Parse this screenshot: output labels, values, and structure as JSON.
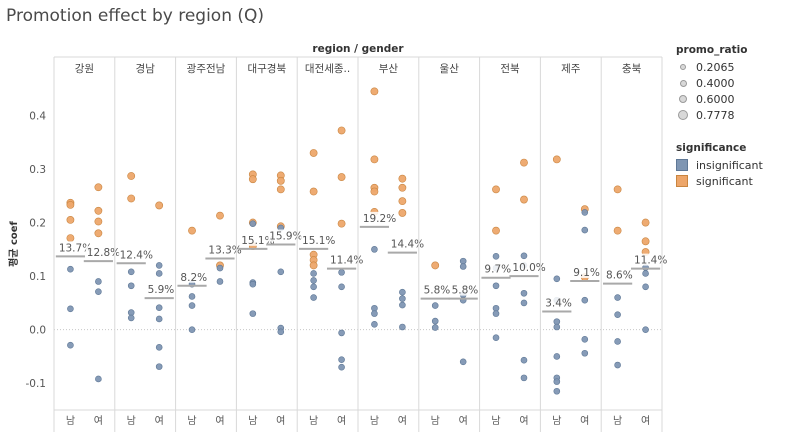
{
  "title": "Promotion effect by region (Q)",
  "colors": {
    "insignificant": "#7f96b3",
    "significant": "#eda66a",
    "insignificant_stroke": "#5f7896",
    "significant_stroke": "#c98540",
    "avg_line": "#a9a9a9",
    "grid": "#d9d9d9"
  },
  "legend": {
    "size_title": "promo_ratio",
    "size_items": [
      "0.2065",
      "0.4000",
      "0.6000",
      "0.7778"
    ],
    "color_title": "significance",
    "color_items": [
      {
        "label": "insignificant",
        "key": "insignificant"
      },
      {
        "label": "significant",
        "key": "significant"
      }
    ]
  },
  "chart_data": {
    "type": "scatter",
    "title": "Promotion effect by region (Q)",
    "column_header": "region / gender",
    "ylabel": "평균 coef",
    "ylim": [
      -0.15,
      0.47
    ],
    "yticks": [
      -0.1,
      0.0,
      0.1,
      0.2,
      0.3,
      0.4
    ],
    "ytick_labels": [
      "-0.1",
      "0.0",
      "0.1",
      "0.2",
      "0.3",
      "0.4"
    ],
    "gender_labels": [
      "남",
      "여"
    ],
    "regions": [
      {
        "name": "강원",
        "groups": [
          {
            "gender": "남",
            "mean": 0.137,
            "label": "13.7%",
            "points": [
              {
                "y": 0.237,
                "sig": true
              },
              {
                "y": 0.233,
                "sig": true
              },
              {
                "y": 0.205,
                "sig": true
              },
              {
                "y": 0.171,
                "sig": true
              },
              {
                "y": 0.113,
                "sig": false
              },
              {
                "y": 0.039,
                "sig": false
              },
              {
                "y": -0.029,
                "sig": false
              }
            ]
          },
          {
            "gender": "여",
            "mean": 0.128,
            "label": "12.8%",
            "points": [
              {
                "y": 0.266,
                "sig": true
              },
              {
                "y": 0.222,
                "sig": true
              },
              {
                "y": 0.202,
                "sig": true
              },
              {
                "y": 0.18,
                "sig": true
              },
              {
                "y": 0.09,
                "sig": false
              },
              {
                "y": 0.071,
                "sig": false
              },
              {
                "y": -0.092,
                "sig": false
              }
            ]
          }
        ]
      },
      {
        "name": "경남",
        "groups": [
          {
            "gender": "남",
            "mean": 0.124,
            "label": "12.4%",
            "points": [
              {
                "y": 0.287,
                "sig": true
              },
              {
                "y": 0.245,
                "sig": true
              },
              {
                "y": 0.108,
                "sig": false
              },
              {
                "y": 0.082,
                "sig": false
              },
              {
                "y": 0.032,
                "sig": false
              },
              {
                "y": 0.022,
                "sig": false
              }
            ]
          },
          {
            "gender": "여",
            "mean": 0.059,
            "label": "5.9%",
            "points": [
              {
                "y": 0.232,
                "sig": true
              },
              {
                "y": 0.12,
                "sig": false
              },
              {
                "y": 0.105,
                "sig": false
              },
              {
                "y": 0.041,
                "sig": false
              },
              {
                "y": 0.02,
                "sig": false
              },
              {
                "y": -0.033,
                "sig": false
              },
              {
                "y": -0.069,
                "sig": false
              }
            ]
          }
        ]
      },
      {
        "name": "광주전남",
        "groups": [
          {
            "gender": "남",
            "mean": 0.082,
            "label": "8.2%",
            "points": [
              {
                "y": 0.185,
                "sig": true
              },
              {
                "y": 0.085,
                "sig": false
              },
              {
                "y": 0.062,
                "sig": false
              },
              {
                "y": 0.045,
                "sig": false
              },
              {
                "y": 0.0,
                "sig": false
              }
            ]
          },
          {
            "gender": "여",
            "mean": 0.133,
            "label": "13.3%",
            "points": [
              {
                "y": 0.213,
                "sig": true
              },
              {
                "y": 0.12,
                "sig": true
              },
              {
                "y": 0.115,
                "sig": false
              },
              {
                "y": 0.09,
                "sig": false
              }
            ]
          }
        ]
      },
      {
        "name": "대구경북",
        "groups": [
          {
            "gender": "남",
            "mean": 0.151,
            "label": "15.1%",
            "points": [
              {
                "y": 0.29,
                "sig": true
              },
              {
                "y": 0.281,
                "sig": true
              },
              {
                "y": 0.2,
                "sig": true
              },
              {
                "y": 0.198,
                "sig": false
              },
              {
                "y": 0.156,
                "sig": true
              },
              {
                "y": 0.088,
                "sig": false
              },
              {
                "y": 0.085,
                "sig": false
              },
              {
                "y": 0.03,
                "sig": false
              }
            ]
          },
          {
            "gender": "여",
            "mean": 0.159,
            "label": "15.9%",
            "points": [
              {
                "y": 0.288,
                "sig": true
              },
              {
                "y": 0.278,
                "sig": true
              },
              {
                "y": 0.262,
                "sig": true
              },
              {
                "y": 0.193,
                "sig": true
              },
              {
                "y": 0.19,
                "sig": false
              },
              {
                "y": 0.108,
                "sig": false
              },
              {
                "y": 0.003,
                "sig": false
              },
              {
                "y": -0.004,
                "sig": false
              }
            ]
          }
        ]
      },
      {
        "name": "대전세종충남",
        "header_label": "대전세종..",
        "groups": [
          {
            "gender": "남",
            "mean": 0.151,
            "label": "15.1%",
            "points": [
              {
                "y": 0.33,
                "sig": true
              },
              {
                "y": 0.258,
                "sig": true
              },
              {
                "y": 0.14,
                "sig": true
              },
              {
                "y": 0.13,
                "sig": true
              },
              {
                "y": 0.12,
                "sig": true
              },
              {
                "y": 0.105,
                "sig": false
              },
              {
                "y": 0.092,
                "sig": false
              },
              {
                "y": 0.08,
                "sig": false
              },
              {
                "y": 0.06,
                "sig": false
              }
            ]
          },
          {
            "gender": "여",
            "mean": 0.114,
            "label": "11.4%",
            "points": [
              {
                "y": 0.372,
                "sig": true
              },
              {
                "y": 0.285,
                "sig": true
              },
              {
                "y": 0.198,
                "sig": true
              },
              {
                "y": 0.107,
                "sig": false
              },
              {
                "y": 0.08,
                "sig": false
              },
              {
                "y": -0.006,
                "sig": false
              },
              {
                "y": -0.056,
                "sig": false
              },
              {
                "y": -0.07,
                "sig": false
              }
            ]
          }
        ]
      },
      {
        "name": "부산",
        "groups": [
          {
            "gender": "남",
            "mean": 0.192,
            "label": "19.2%",
            "points": [
              {
                "y": 0.445,
                "sig": true
              },
              {
                "y": 0.318,
                "sig": true
              },
              {
                "y": 0.265,
                "sig": true
              },
              {
                "y": 0.258,
                "sig": true
              },
              {
                "y": 0.22,
                "sig": true
              },
              {
                "y": 0.15,
                "sig": false
              },
              {
                "y": 0.04,
                "sig": false
              },
              {
                "y": 0.03,
                "sig": false
              },
              {
                "y": 0.01,
                "sig": false
              }
            ]
          },
          {
            "gender": "여",
            "mean": 0.144,
            "label": "14.4%",
            "points": [
              {
                "y": 0.282,
                "sig": true
              },
              {
                "y": 0.265,
                "sig": true
              },
              {
                "y": 0.24,
                "sig": true
              },
              {
                "y": 0.218,
                "sig": true
              },
              {
                "y": 0.07,
                "sig": false
              },
              {
                "y": 0.058,
                "sig": false
              },
              {
                "y": 0.046,
                "sig": false
              },
              {
                "y": 0.005,
                "sig": false
              }
            ]
          }
        ]
      },
      {
        "name": "울산",
        "groups": [
          {
            "gender": "남",
            "mean": 0.058,
            "label": "5.8%",
            "points": [
              {
                "y": 0.12,
                "sig": true
              },
              {
                "y": 0.045,
                "sig": false
              },
              {
                "y": 0.016,
                "sig": false
              },
              {
                "y": 0.004,
                "sig": false
              }
            ]
          },
          {
            "gender": "여",
            "mean": 0.058,
            "label": "5.8%",
            "points": [
              {
                "y": 0.128,
                "sig": false
              },
              {
                "y": 0.118,
                "sig": false
              },
              {
                "y": 0.065,
                "sig": false
              },
              {
                "y": 0.055,
                "sig": false
              },
              {
                "y": -0.06,
                "sig": false
              }
            ]
          }
        ]
      },
      {
        "name": "전북",
        "groups": [
          {
            "gender": "남",
            "mean": 0.097,
            "label": "9.7%",
            "points": [
              {
                "y": 0.262,
                "sig": true
              },
              {
                "y": 0.185,
                "sig": true
              },
              {
                "y": 0.137,
                "sig": false
              },
              {
                "y": 0.115,
                "sig": false
              },
              {
                "y": 0.082,
                "sig": false
              },
              {
                "y": 0.04,
                "sig": false
              },
              {
                "y": 0.03,
                "sig": false
              },
              {
                "y": -0.015,
                "sig": false
              }
            ]
          },
          {
            "gender": "여",
            "mean": 0.1,
            "label": "10.0%",
            "points": [
              {
                "y": 0.312,
                "sig": true
              },
              {
                "y": 0.243,
                "sig": true
              },
              {
                "y": 0.138,
                "sig": false
              },
              {
                "y": 0.12,
                "sig": false
              },
              {
                "y": 0.068,
                "sig": false
              },
              {
                "y": 0.05,
                "sig": false
              },
              {
                "y": -0.057,
                "sig": false
              },
              {
                "y": -0.09,
                "sig": false
              }
            ]
          }
        ]
      },
      {
        "name": "제주",
        "groups": [
          {
            "gender": "남",
            "mean": 0.034,
            "label": "3.4%",
            "points": [
              {
                "y": 0.318,
                "sig": true
              },
              {
                "y": 0.095,
                "sig": false
              },
              {
                "y": 0.055,
                "sig": false
              },
              {
                "y": 0.015,
                "sig": false
              },
              {
                "y": 0.005,
                "sig": false
              },
              {
                "y": -0.05,
                "sig": false
              },
              {
                "y": -0.09,
                "sig": false
              },
              {
                "y": -0.097,
                "sig": false
              },
              {
                "y": -0.115,
                "sig": false
              }
            ]
          },
          {
            "gender": "여",
            "mean": 0.091,
            "label": "9.1%",
            "points": [
              {
                "y": 0.225,
                "sig": true
              },
              {
                "y": 0.219,
                "sig": false
              },
              {
                "y": 0.186,
                "sig": false
              },
              {
                "y": 0.098,
                "sig": true
              },
              {
                "y": 0.055,
                "sig": false
              },
              {
                "y": -0.018,
                "sig": false
              },
              {
                "y": -0.044,
                "sig": false
              }
            ]
          }
        ]
      },
      {
        "name": "충북",
        "groups": [
          {
            "gender": "남",
            "mean": 0.086,
            "label": "8.6%",
            "points": [
              {
                "y": 0.262,
                "sig": true
              },
              {
                "y": 0.185,
                "sig": true
              },
              {
                "y": 0.06,
                "sig": false
              },
              {
                "y": 0.028,
                "sig": false
              },
              {
                "y": -0.022,
                "sig": false
              },
              {
                "y": -0.066,
                "sig": false
              }
            ]
          },
          {
            "gender": "여",
            "mean": 0.114,
            "label": "11.4%",
            "points": [
              {
                "y": 0.2,
                "sig": true
              },
              {
                "y": 0.165,
                "sig": true
              },
              {
                "y": 0.145,
                "sig": true
              },
              {
                "y": 0.116,
                "sig": false
              },
              {
                "y": 0.105,
                "sig": false
              },
              {
                "y": 0.08,
                "sig": false
              },
              {
                "y": 0.0,
                "sig": false
              }
            ]
          }
        ]
      }
    ]
  }
}
